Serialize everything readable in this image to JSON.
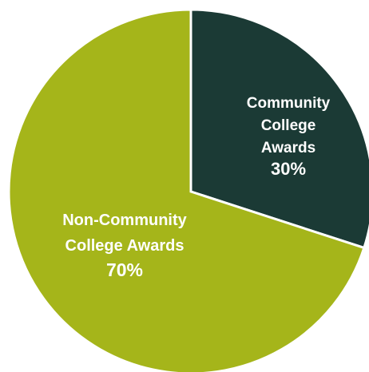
{
  "chart_data": {
    "type": "pie",
    "title": "",
    "slices": [
      {
        "label_lines": [
          "Community",
          "College",
          "Awards"
        ],
        "value_label": "30%",
        "value": 30,
        "color": "#1b3a35",
        "text_color": "#ffffff"
      },
      {
        "label_lines": [
          "Non-Community",
          "College Awards"
        ],
        "value_label": "70%",
        "value": 70,
        "color": "#a5b51a",
        "text_color": "#ffffff"
      }
    ],
    "start_angle": "12 o'clock",
    "direction": "clockwise",
    "slice_separator_color": "#ffffff",
    "legend": "none"
  }
}
